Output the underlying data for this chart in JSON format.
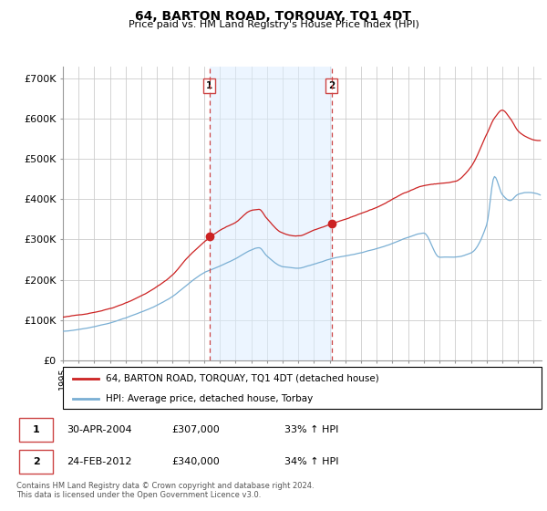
{
  "title": "64, BARTON ROAD, TORQUAY, TQ1 4DT",
  "subtitle": "Price paid vs. HM Land Registry's House Price Index (HPI)",
  "ylabel_ticks": [
    "£0",
    "£100K",
    "£200K",
    "£300K",
    "£400K",
    "£500K",
    "£600K",
    "£700K"
  ],
  "ytick_values": [
    0,
    100000,
    200000,
    300000,
    400000,
    500000,
    600000,
    700000
  ],
  "ylim": [
    0,
    730000
  ],
  "xlim_start": 1995.0,
  "xlim_end": 2025.5,
  "red_color": "#cc2222",
  "blue_color": "#7aafd4",
  "vline_color": "#cc4444",
  "shade_color": "#ddeeff",
  "legend_label_red": "64, BARTON ROAD, TORQUAY, TQ1 4DT (detached house)",
  "legend_label_blue": "HPI: Average price, detached house, Torbay",
  "sale1_year": 2004.33,
  "sale1_price": 307000,
  "sale1_label": "1",
  "sale2_year": 2012.12,
  "sale2_price": 340000,
  "sale2_label": "2",
  "table_data": [
    [
      "1",
      "30-APR-2004",
      "£307,000",
      "33% ↑ HPI"
    ],
    [
      "2",
      "24-FEB-2012",
      "£340,000",
      "34% ↑ HPI"
    ]
  ],
  "footnote": "Contains HM Land Registry data © Crown copyright and database right 2024.\nThis data is licensed under the Open Government Licence v3.0."
}
